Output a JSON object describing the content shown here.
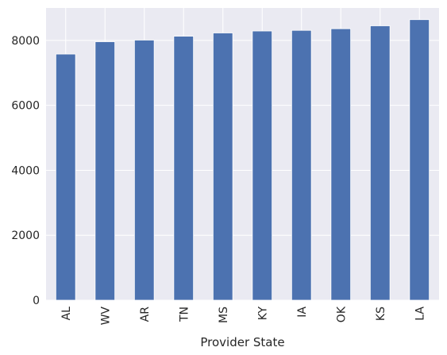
{
  "chart_data": {
    "type": "bar",
    "title": "",
    "xlabel": "Provider State",
    "ylabel": "",
    "categories": [
      "AL",
      "WV",
      "AR",
      "TN",
      "MS",
      "KY",
      "IA",
      "OK",
      "KS",
      "LA"
    ],
    "values": [
      7580,
      7960,
      8010,
      8130,
      8230,
      8290,
      8310,
      8360,
      8450,
      8640
    ],
    "ylim": [
      0,
      9000
    ],
    "yticks": [
      0,
      2000,
      4000,
      6000,
      8000
    ],
    "grid": true,
    "legend": "none",
    "bar_color": "#4c72b0",
    "background_color": "#eaeaf2",
    "grid_color": "#ffffff"
  }
}
